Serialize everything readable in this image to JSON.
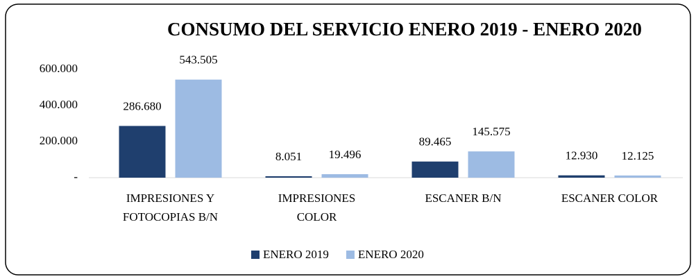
{
  "chart_data": {
    "type": "bar",
    "title": "CONSUMO DEL SERVICIO ENERO 2019 - ENERO 2020",
    "categories": [
      "IMPRESIONES Y\nFOTOCOPIAS B/N",
      "IMPRESIONES\nCOLOR",
      "ESCANER B/N",
      "ESCANER COLOR"
    ],
    "series": [
      {
        "name": "ENERO 2019",
        "color": "#1f3f6e",
        "values": [
          286680,
          8051,
          89465,
          12930
        ],
        "value_labels": [
          "286.680",
          "8.051",
          "89.465",
          "12.930"
        ]
      },
      {
        "name": "ENERO 2020",
        "color": "#9dbbe3",
        "values": [
          543505,
          19496,
          145575,
          12125
        ],
        "value_labels": [
          "543.505",
          "19.496",
          "145.575",
          "12.125"
        ]
      }
    ],
    "ylim": [
      0,
      600000
    ],
    "yticks": [
      {
        "value": 0,
        "label": "-"
      },
      {
        "value": 200000,
        "label": "200.000"
      },
      {
        "value": 400000,
        "label": "400.000"
      },
      {
        "value": 600000,
        "label": "600.000"
      }
    ],
    "grid": false
  }
}
